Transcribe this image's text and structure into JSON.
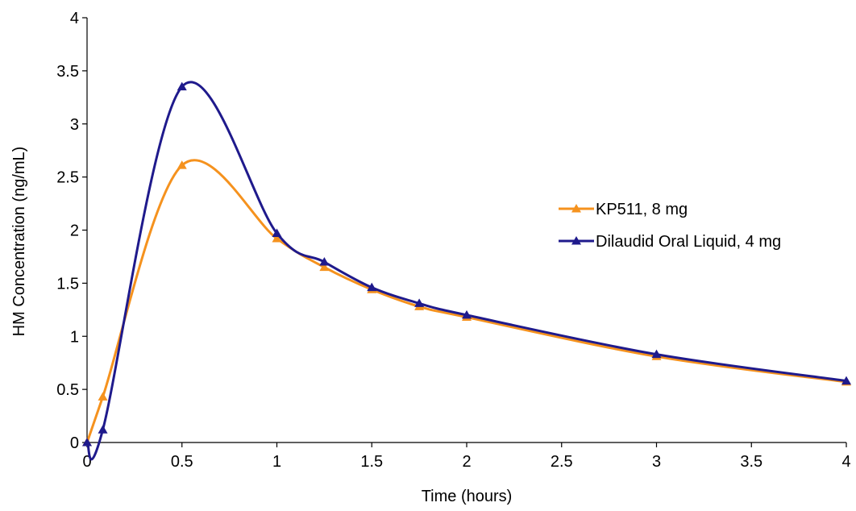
{
  "chart_data": {
    "type": "line",
    "title": "",
    "xlabel": "Time (hours)",
    "ylabel": "HM Concentration (ng/mL)",
    "xlim": [
      0,
      4
    ],
    "ylim": [
      0,
      4
    ],
    "x_ticks": [
      0,
      0.5,
      1,
      1.5,
      2,
      2.5,
      3,
      3.5,
      4
    ],
    "x_tick_labels": [
      "0",
      "0.5",
      "1",
      "1.5",
      "2",
      "2.5",
      "3",
      "3.5",
      "4"
    ],
    "y_ticks": [
      0,
      0.5,
      1,
      1.5,
      2,
      2.5,
      3,
      3.5,
      4
    ],
    "y_tick_labels": [
      "0",
      "0.5",
      "1",
      "1.5",
      "2",
      "2.5",
      "3",
      "3.5",
      "4"
    ],
    "grid": false,
    "legend_position": "right",
    "series": [
      {
        "name": "KP511, 8 mg",
        "color": "#F5921E",
        "marker": "triangle",
        "x": [
          0,
          0.083,
          0.5,
          1,
          1.25,
          1.5,
          1.75,
          2,
          3,
          4
        ],
        "y": [
          0,
          0.43,
          2.61,
          1.92,
          1.65,
          1.44,
          1.28,
          1.18,
          0.81,
          0.57
        ]
      },
      {
        "name": "Dilaudid Oral Liquid, 4 mg",
        "color": "#1F1A8C",
        "marker": "triangle",
        "x": [
          0,
          0.083,
          0.5,
          1,
          1.25,
          1.5,
          1.75,
          2,
          3,
          4
        ],
        "y": [
          0,
          0.12,
          3.35,
          1.97,
          1.7,
          1.46,
          1.31,
          1.2,
          0.83,
          0.58
        ]
      }
    ]
  }
}
